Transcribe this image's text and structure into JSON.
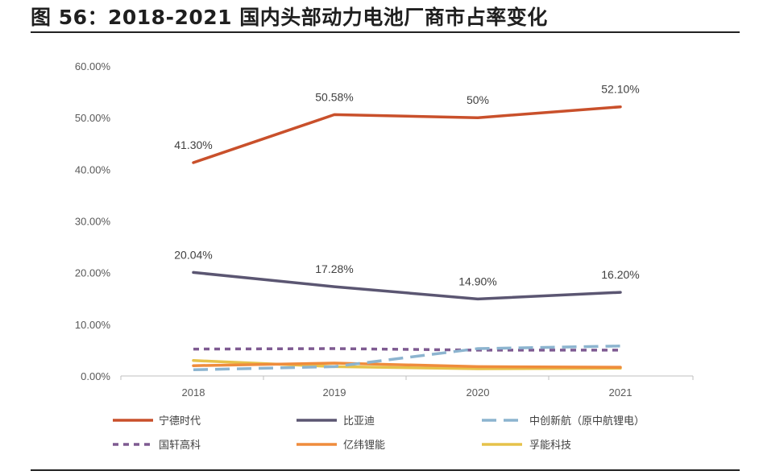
{
  "title": "图 56：2018-2021 国内头部动力电池厂商市占率变化",
  "chart_data": {
    "type": "line",
    "title": "图 56：2018-2021 国内头部动力电池厂商市占率变化",
    "xlabel": "",
    "ylabel": "",
    "categories": [
      "2018",
      "2019",
      "2020",
      "2021"
    ],
    "ylim": [
      0,
      60
    ],
    "yticks": [
      "0.00%",
      "10.00%",
      "20.00%",
      "30.00%",
      "40.00%",
      "50.00%",
      "60.00%"
    ],
    "grid": false,
    "legend_position": "bottom",
    "series": [
      {
        "name": "宁德时代",
        "values": [
          41.3,
          50.58,
          50.0,
          52.1
        ],
        "labels": [
          "41.30%",
          "50.58%",
          "50%",
          "52.10%"
        ],
        "color": "#c9502b",
        "dash": "solid"
      },
      {
        "name": "比亚迪",
        "values": [
          20.04,
          17.28,
          14.9,
          16.2
        ],
        "labels": [
          "20.04%",
          "17.28%",
          "14.90%",
          "16.20%"
        ],
        "color": "#5b5672",
        "dash": "solid"
      },
      {
        "name": "中创新航（原中航锂电）",
        "values": [
          1.2,
          1.8,
          5.3,
          5.8
        ],
        "color": "#8cb4cf",
        "dash": "long"
      },
      {
        "name": "国轩高科",
        "values": [
          5.2,
          5.3,
          5.0,
          5.0
        ],
        "color": "#7e5a91",
        "dash": "short"
      },
      {
        "name": "亿纬锂能",
        "values": [
          2.0,
          2.5,
          1.8,
          1.7
        ],
        "color": "#ef8c3c",
        "dash": "solid"
      },
      {
        "name": "孚能科技",
        "values": [
          3.0,
          1.8,
          1.4,
          1.5
        ],
        "color": "#e6c24a",
        "dash": "solid"
      }
    ]
  }
}
